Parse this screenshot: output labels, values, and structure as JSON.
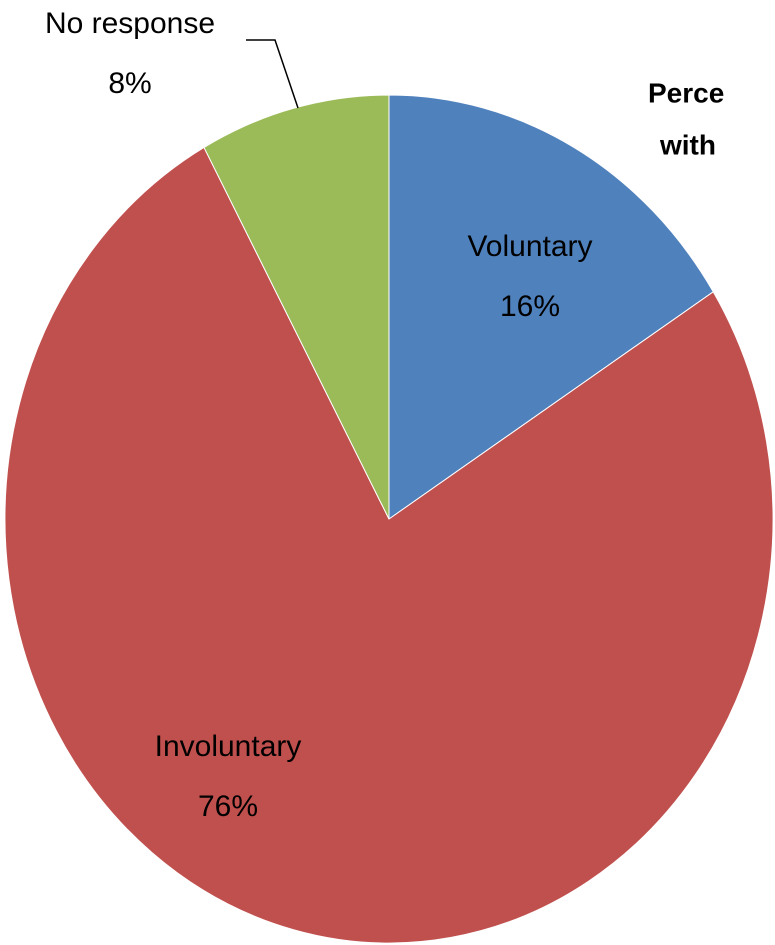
{
  "chart_data": {
    "type": "pie",
    "title_lines": [
      "Perce",
      "with"
    ],
    "categories": [
      "Voluntary",
      "Involuntary",
      "No response"
    ],
    "values": [
      16,
      76,
      8
    ],
    "value_labels": [
      "16%",
      "76%",
      "8%"
    ],
    "colors": [
      "#4f81bd",
      "#c0504d",
      "#9bbb59"
    ],
    "start_angle": 0,
    "direction": "clockwise"
  }
}
